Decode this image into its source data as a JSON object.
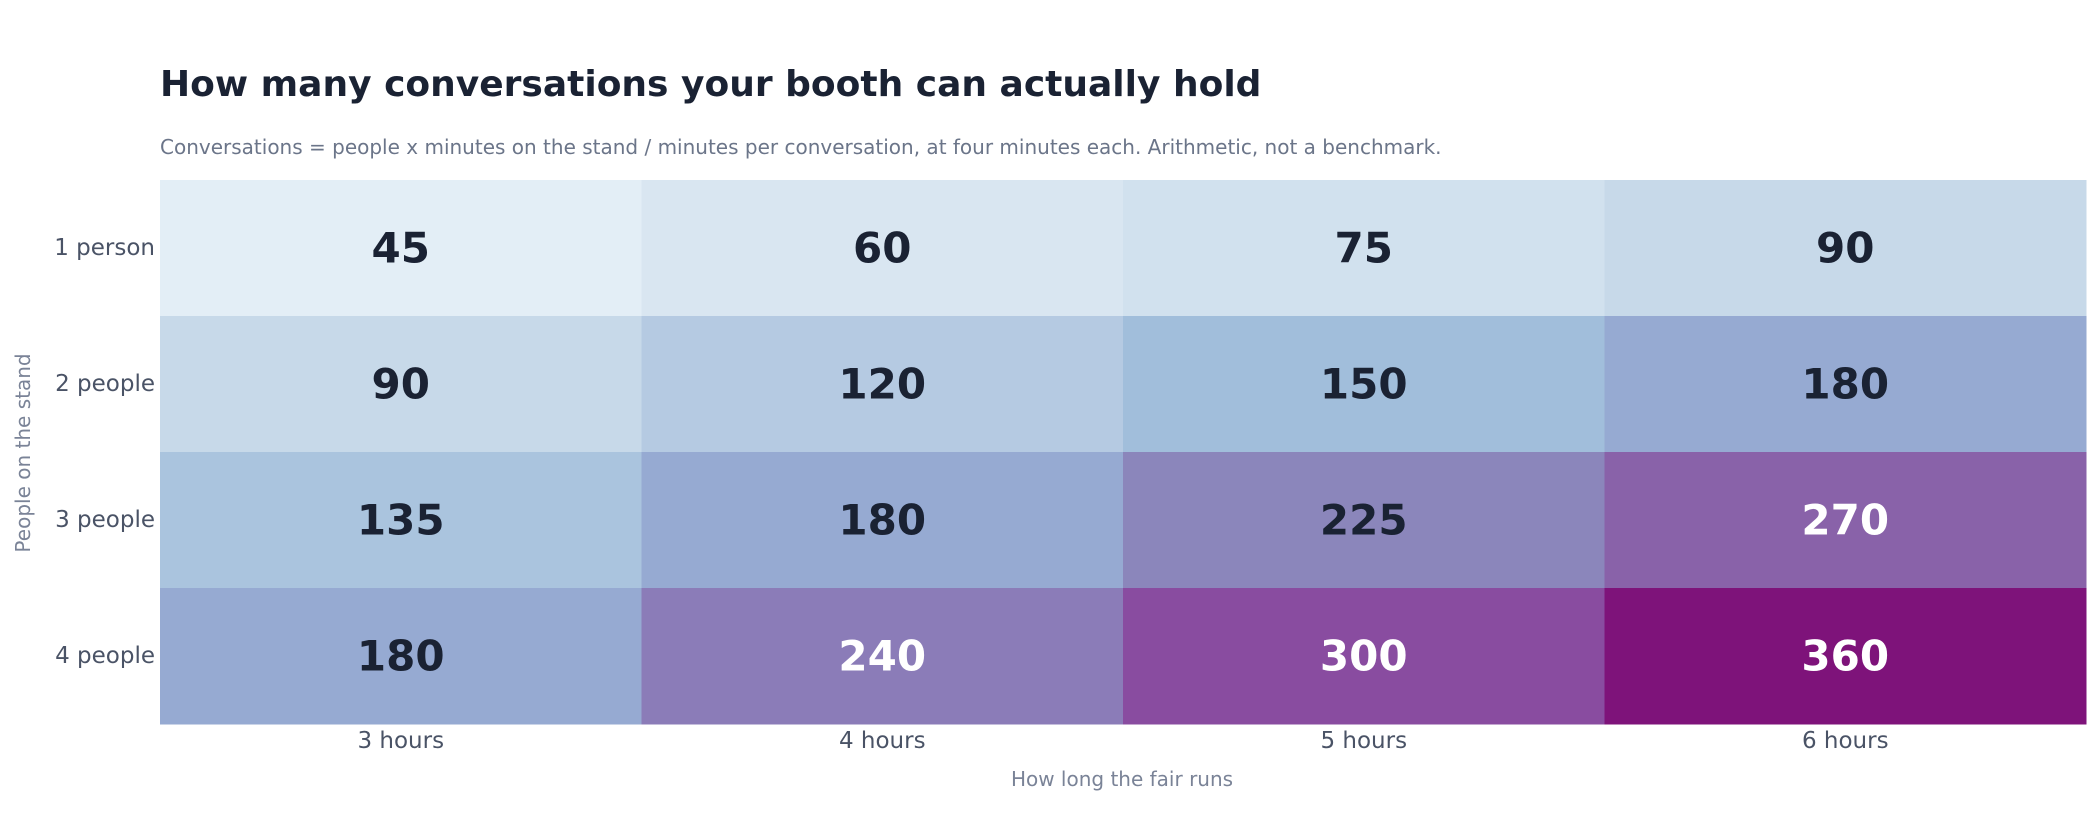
{
  "chart_data": {
    "type": "heatmap",
    "title": "How many conversations your booth can actually hold",
    "subtitle": "Conversations = people x minutes on the stand / minutes per conversation, at four minutes each. Arithmetic, not a benchmark.",
    "xlabel": "How long the fair runs",
    "ylabel": "People on the stand",
    "x": [
      "3 hours",
      "4 hours",
      "5 hours",
      "6 hours"
    ],
    "y": [
      "1 person",
      "2 people",
      "3 people",
      "4 people"
    ],
    "values": [
      [
        45,
        60,
        75,
        90
      ],
      [
        90,
        120,
        150,
        180
      ],
      [
        135,
        180,
        225,
        270
      ],
      [
        180,
        240,
        300,
        360
      ]
    ],
    "colors": [
      [
        "#e3eef6",
        "#d9e6f1",
        "#d1e1ee",
        "#c7d9e9"
      ],
      [
        "#c7d9e9",
        "#b5cae2",
        "#a1bedb",
        "#96aad2"
      ],
      [
        "#aac4de",
        "#96aad2",
        "#8b86bb",
        "#8962a9"
      ],
      [
        "#96aad2",
        "#8b7cb8",
        "#894ca0",
        "#7e137a"
      ]
    ],
    "text_colors": [
      [
        "#1a2233",
        "#1a2233",
        "#1a2233",
        "#1a2233"
      ],
      [
        "#1a2233",
        "#1a2233",
        "#1a2233",
        "#1a2233"
      ],
      [
        "#1a2233",
        "#1a2233",
        "#1a2233",
        "#ffffff"
      ],
      [
        "#1a2233",
        "#ffffff",
        "#ffffff",
        "#ffffff"
      ]
    ]
  }
}
